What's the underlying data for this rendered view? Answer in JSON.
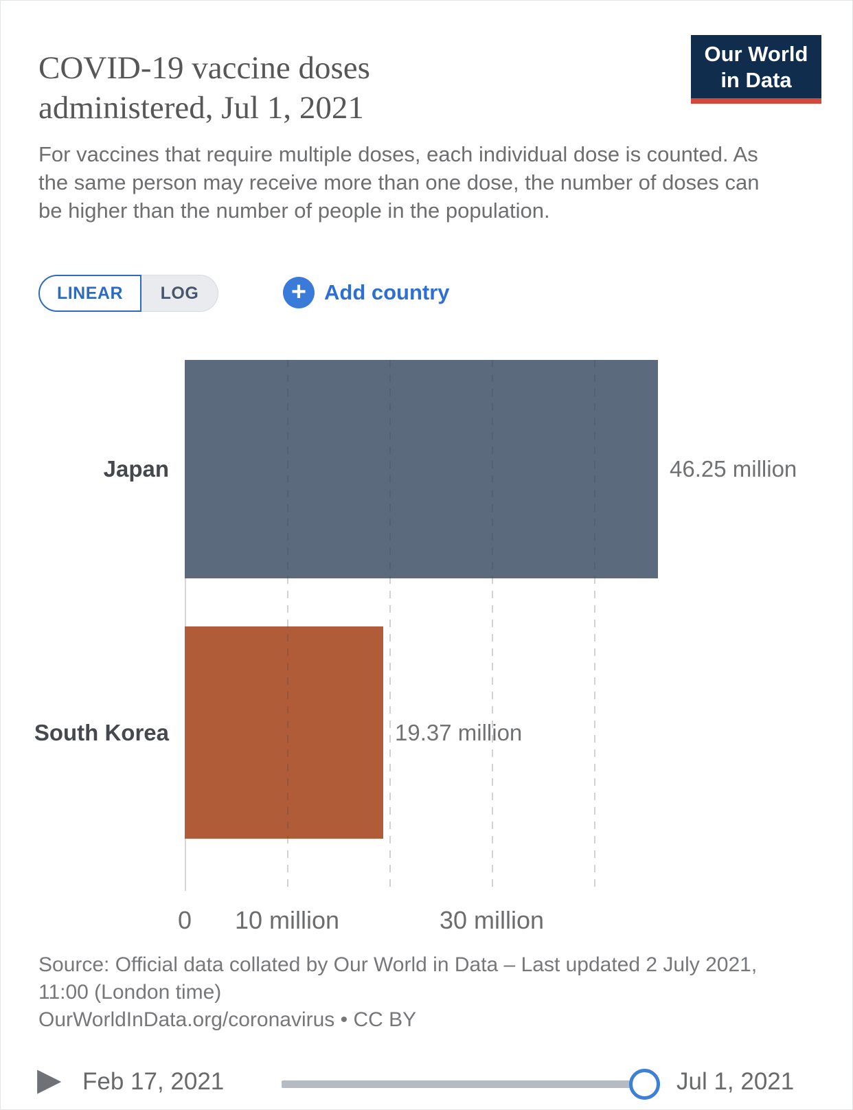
{
  "header": {
    "title": "COVID-19 vaccine doses administered, Jul 1, 2021",
    "subtitle": "For vaccines that require multiple doses, each individual dose is counted. As the same person may receive more than one dose, the number of doses can be higher than the number of people in the population.",
    "logo": {
      "line1": "Our World",
      "line2": "in Data",
      "navy": "#102d4e",
      "red": "#d1493a"
    }
  },
  "controls": {
    "linear_label": "LINEAR",
    "log_label": "LOG",
    "selected_scale": "LINEAR",
    "plus_icon_glyph": "+",
    "add_country_label": "Add country",
    "accent_blue": "#2d6bbf",
    "add_country_blue": "#3a7ad8"
  },
  "chart_data": {
    "type": "bar",
    "orientation": "horizontal",
    "title": "COVID-19 vaccine doses administered, Jul 1, 2021",
    "categories": [
      "Japan",
      "South Korea"
    ],
    "values_million": [
      46.25,
      19.37
    ],
    "value_labels": [
      "46.25 million",
      "19.37 million"
    ],
    "bar_colors": [
      "#5b6a7d",
      "#b05c39"
    ],
    "x_ticks": [
      {
        "value_million": 0,
        "label": "0"
      },
      {
        "value_million": 10,
        "label": "10 million"
      },
      {
        "value_million": 30,
        "label": "30 million"
      }
    ],
    "gridlines_million": [
      10,
      20,
      30,
      40
    ],
    "xlim_million": [
      0,
      46.25
    ],
    "grid": "dashed-vertical",
    "legend": "none"
  },
  "footer": {
    "source_text": "Source: Official data collated by Our World in Data – Last updated 2 July 2021, 11:00 (London time)",
    "source_link": "OurWorldInData.org/coronavirus",
    "source_suffix": " • CC BY"
  },
  "timeline": {
    "play_icon_glyph": "▶",
    "start_date": "Feb 17, 2021",
    "end_date": "Jul 1, 2021",
    "handle_position": "end"
  }
}
